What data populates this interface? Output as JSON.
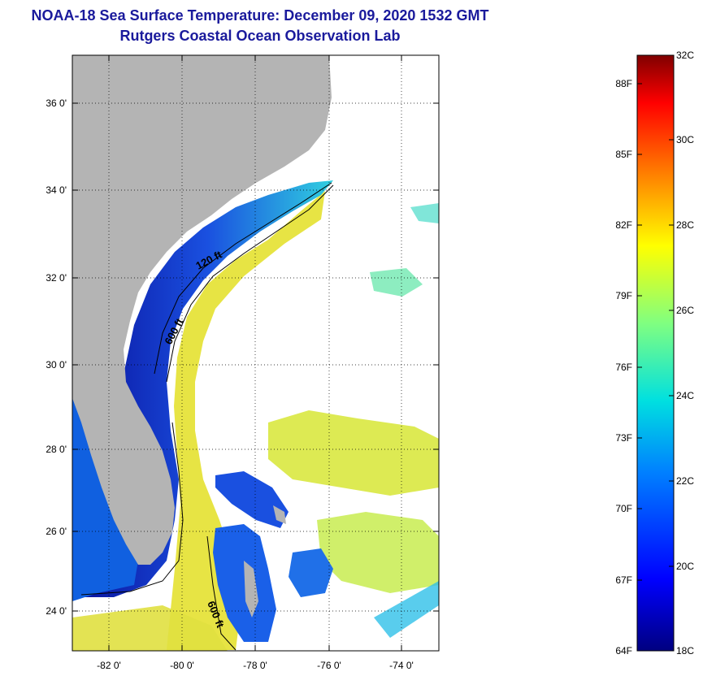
{
  "title": "NOAA-18 Sea Surface Temperature:  December 09, 2020 1532 GMT",
  "subtitle": "Rutgers Coastal Ocean Observation Lab",
  "map": {
    "lat_ticks": [
      "36 0'",
      "34 0'",
      "32 0'",
      "30 0'",
      "28 0'",
      "26 0'",
      "24 0'"
    ],
    "lon_ticks": [
      "-82 0'",
      "-80 0'",
      "-78 0'",
      "-76 0'",
      "-74 0'"
    ],
    "contours": [
      "120 ft",
      "600 ft",
      "600 ft"
    ]
  },
  "colorbar": {
    "fahrenheit": [
      "88F",
      "85F",
      "82F",
      "79F",
      "76F",
      "73F",
      "70F",
      "67F",
      "64F"
    ],
    "celsius": [
      "32C",
      "30C",
      "28C",
      "26C",
      "24C",
      "22C",
      "20C",
      "18C"
    ]
  },
  "colors": {
    "title": "#1a1a9c",
    "land": "#b4b4b4",
    "cold": "#0a1aa0",
    "warm": "#e8e030"
  }
}
